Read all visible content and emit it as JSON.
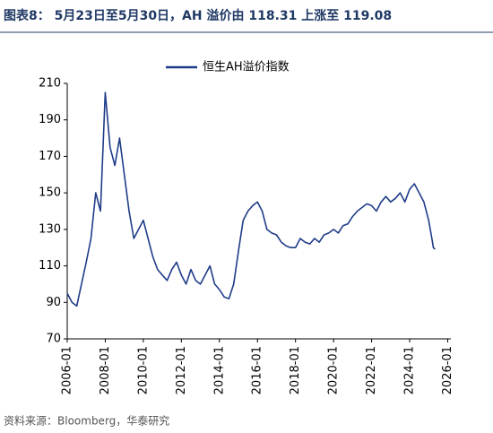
{
  "chart_data": {
    "type": "line",
    "title": "图表8：  5月23日至5月30日，AH 溢价由 118.31 上涨至 119.08",
    "source": "资料来源：Bloomberg，华泰研究",
    "x": [
      "2006-01",
      "2006-04",
      "2006-07",
      "2006-10",
      "2007-01",
      "2007-04",
      "2007-07",
      "2007-10",
      "2008-01",
      "2008-04",
      "2008-07",
      "2008-10",
      "2009-01",
      "2009-04",
      "2009-07",
      "2009-10",
      "2010-01",
      "2010-04",
      "2010-07",
      "2010-10",
      "2011-01",
      "2011-04",
      "2011-07",
      "2011-10",
      "2012-01",
      "2012-04",
      "2012-07",
      "2012-10",
      "2013-01",
      "2013-04",
      "2013-07",
      "2013-10",
      "2014-01",
      "2014-04",
      "2014-07",
      "2014-10",
      "2015-01",
      "2015-04",
      "2015-07",
      "2015-10",
      "2016-01",
      "2016-04",
      "2016-07",
      "2016-10",
      "2017-01",
      "2017-04",
      "2017-07",
      "2017-10",
      "2018-01",
      "2018-04",
      "2018-07",
      "2018-10",
      "2019-01",
      "2019-04",
      "2019-07",
      "2019-10",
      "2020-01",
      "2020-04",
      "2020-07",
      "2020-10",
      "2021-01",
      "2021-04",
      "2021-07",
      "2021-10",
      "2022-01",
      "2022-04",
      "2022-07",
      "2022-10",
      "2023-01",
      "2023-04",
      "2023-07",
      "2023-10",
      "2024-01",
      "2024-04",
      "2024-07",
      "2024-10",
      "2025-01",
      "2025-03",
      "2025-04",
      "2025-05"
    ],
    "series": [
      {
        "name": "恒生AH溢价指数",
        "color": "#1f3c88",
        "values": [
          95,
          90,
          88,
          100,
          112,
          125,
          150,
          140,
          205,
          175,
          165,
          180,
          160,
          140,
          125,
          130,
          135,
          125,
          115,
          108,
          105,
          102,
          108,
          112,
          105,
          100,
          108,
          102,
          100,
          105,
          110,
          100,
          97,
          93,
          92,
          100,
          118,
          135,
          140,
          143,
          145,
          140,
          130,
          128,
          127,
          123,
          121,
          120,
          120,
          125,
          123,
          122,
          125,
          123,
          127,
          128,
          130,
          128,
          132,
          133,
          137,
          140,
          142,
          144,
          143,
          140,
          145,
          148,
          145,
          147,
          150,
          145,
          152,
          155,
          150,
          145,
          135,
          125,
          120,
          119.08
        ]
      }
    ],
    "xlim": [
      "2006-01",
      "2026-03"
    ],
    "xticks": [
      "2006-01",
      "2008-01",
      "2010-01",
      "2012-01",
      "2014-01",
      "2016-01",
      "2018-01",
      "2020-01",
      "2022-01",
      "2024-01",
      "2026-01"
    ],
    "ylim": [
      70,
      210
    ],
    "yticks": [
      70,
      90,
      110,
      130,
      150,
      170,
      190,
      210
    ]
  }
}
